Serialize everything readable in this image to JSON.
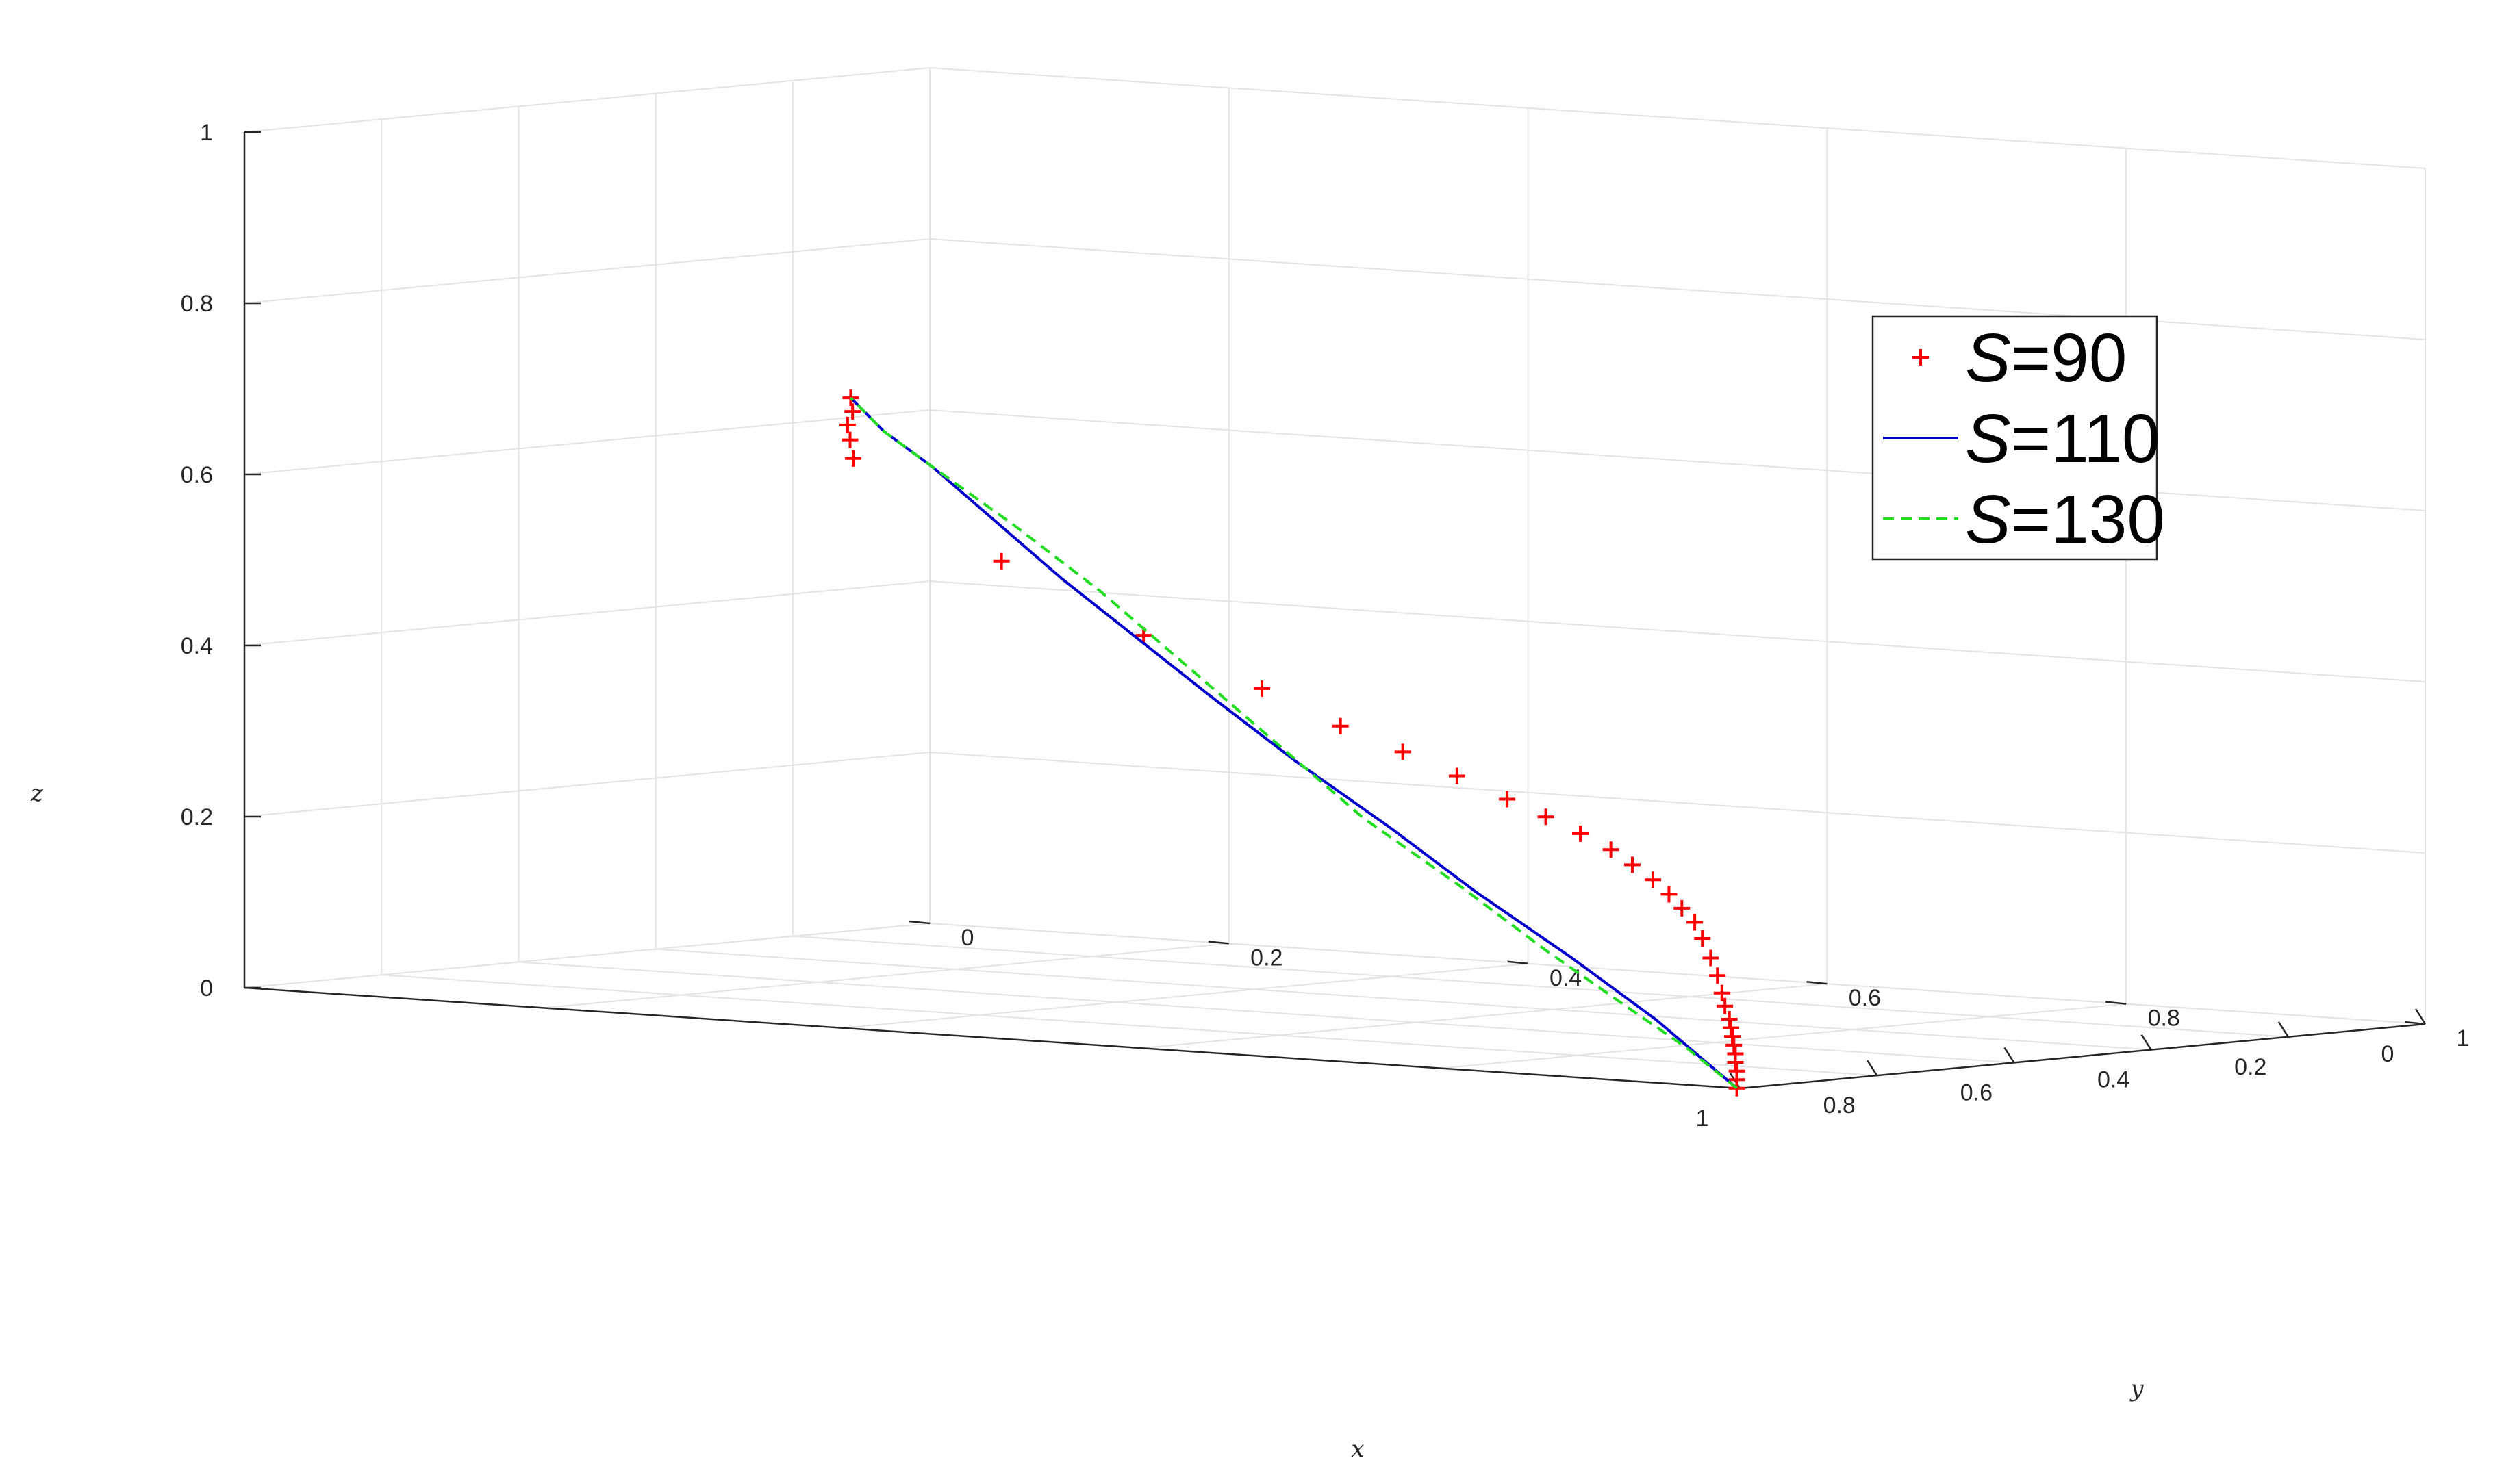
{
  "chart_data": {
    "type": "line3d",
    "xlabel": "x",
    "ylabel": "y",
    "zlabel": "z",
    "xlim": [
      0,
      1
    ],
    "ylim": [
      0,
      1
    ],
    "zlim": [
      0,
      1
    ],
    "x_ticks": [
      {
        "v": 0,
        "label": "0"
      },
      {
        "v": 0.2,
        "label": "0.2"
      },
      {
        "v": 0.4,
        "label": "0.4"
      },
      {
        "v": 0.6,
        "label": "0.6"
      },
      {
        "v": 0.8,
        "label": "0.8"
      },
      {
        "v": 1,
        "label": "1"
      }
    ],
    "y_ticks": [
      {
        "v": 0,
        "label": "0"
      },
      {
        "v": 0.2,
        "label": "0.2"
      },
      {
        "v": 0.4,
        "label": "0.4"
      },
      {
        "v": 0.6,
        "label": "0.6"
      },
      {
        "v": 0.8,
        "label": "0.8"
      },
      {
        "v": 1,
        "label": "1"
      }
    ],
    "z_ticks": [
      {
        "v": 0,
        "label": "0"
      },
      {
        "v": 0.2,
        "label": "0.2"
      },
      {
        "v": 0.4,
        "label": "0.4"
      },
      {
        "v": 0.6,
        "label": "0.6"
      },
      {
        "v": 0.8,
        "label": "0.8"
      },
      {
        "v": 1,
        "label": "1"
      }
    ],
    "grid": true,
    "legend_position": "top-right",
    "series": [
      {
        "name_italic": "S",
        "name_rest": "=90",
        "color": "#ff0000",
        "style": "plus-markers",
        "x": [
          1,
          1,
          1,
          1,
          1,
          1,
          1,
          1,
          1,
          1,
          1,
          1,
          0.999,
          0.998,
          0.996,
          0.993,
          0.99,
          0.985,
          0.978,
          0.97,
          0.96,
          0.945,
          0.925,
          0.9,
          0.87,
          0.83,
          0.77,
          0.67,
          0.55,
          0.33,
          0.28,
          0.24,
          0.2,
          0.17
        ],
        "y": [
          0.998,
          0.998,
          0.998,
          0.997,
          0.997,
          0.996,
          0.995,
          0.994,
          0.993,
          0.99,
          0.988,
          0.985,
          0.98,
          0.974,
          0.968,
          0.958,
          0.948,
          0.935,
          0.918,
          0.9,
          0.875,
          0.845,
          0.81,
          0.765,
          0.715,
          0.655,
          0.575,
          0.45,
          0.3,
          0.1,
          0.075,
          0.055,
          0.04,
          0.025
        ],
        "z": [
          0,
          0.01,
          0.02,
          0.03,
          0.04,
          0.05,
          0.06,
          0.07,
          0.08,
          0.095,
          0.11,
          0.13,
          0.15,
          0.172,
          0.19,
          0.205,
          0.22,
          0.235,
          0.25,
          0.265,
          0.28,
          0.295,
          0.31,
          0.33,
          0.35,
          0.37,
          0.4,
          0.44,
          0.5,
          0.58,
          0.595,
          0.607,
          0.618,
          0.63
        ]
      },
      {
        "name_italic": "S",
        "name_rest": "=110",
        "color": "#0000cc",
        "style": "solid",
        "x": [
          1,
          0.97,
          0.92,
          0.86,
          0.79,
          0.71,
          0.62,
          0.53,
          0.44,
          0.36,
          0.28,
          0.22,
          0.17
        ],
        "y": [
          0.998,
          0.93,
          0.85,
          0.76,
          0.67,
          0.57,
          0.47,
          0.38,
          0.29,
          0.21,
          0.13,
          0.07,
          0.025
        ],
        "z": [
          0,
          0.07,
          0.13,
          0.19,
          0.25,
          0.31,
          0.37,
          0.42,
          0.47,
          0.52,
          0.57,
          0.6,
          0.63
        ]
      },
      {
        "name_italic": "S",
        "name_rest": "=130",
        "color": "#22dd22",
        "style": "dashed",
        "x": [
          1,
          0.97,
          0.93,
          0.87,
          0.8,
          0.72,
          0.63,
          0.54,
          0.45,
          0.36,
          0.28,
          0.22,
          0.17
        ],
        "y": [
          0.998,
          0.95,
          0.89,
          0.81,
          0.72,
          0.62,
          0.52,
          0.42,
          0.32,
          0.22,
          0.13,
          0.07,
          0.025
        ],
        "z": [
          0,
          0.04,
          0.08,
          0.13,
          0.19,
          0.25,
          0.32,
          0.39,
          0.46,
          0.52,
          0.57,
          0.6,
          0.63
        ]
      }
    ]
  }
}
